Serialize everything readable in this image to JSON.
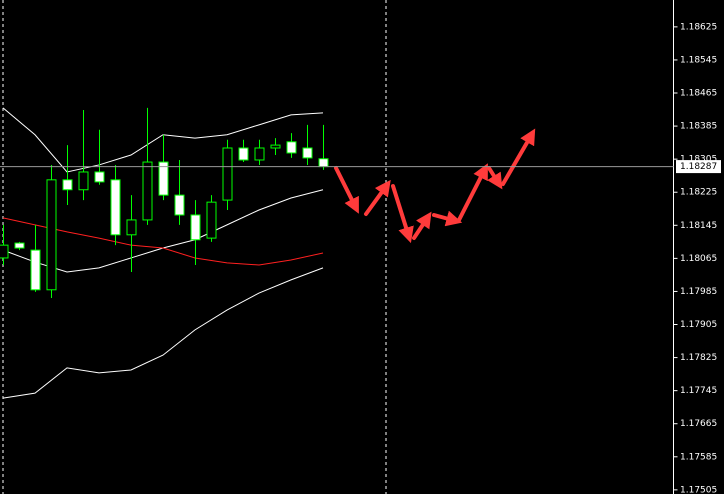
{
  "chart_data": {
    "type": "candlestick",
    "categories": [
      null,
      null,
      null,
      null,
      null,
      null,
      null,
      null,
      null,
      null,
      null,
      null,
      null,
      null,
      null,
      null,
      null,
      null,
      null,
      null,
      null
    ],
    "open": [
      1.18066,
      1.18102,
      1.18085,
      1.17989,
      1.18255,
      1.18231,
      1.18274,
      1.18255,
      1.18122,
      1.18158,
      1.18298,
      1.18218,
      1.1817,
      1.18114,
      1.18206,
      1.18332,
      1.18303,
      1.18332,
      1.18347,
      1.18332,
      1.18306
    ],
    "high": [
      1.18146,
      1.18105,
      1.18146,
      1.18291,
      1.18339,
      1.18424,
      1.18376,
      1.18291,
      1.18218,
      1.18429,
      1.18364,
      1.18303,
      1.18206,
      1.18218,
      1.18352,
      1.18352,
      1.18352,
      1.18356,
      1.18368,
      1.18388,
      1.18388
    ],
    "low": [
      1.18049,
      1.18085,
      1.17984,
      1.17969,
      1.18194,
      1.18206,
      1.18243,
      1.18097,
      1.18032,
      1.18146,
      1.18206,
      1.18146,
      1.18049,
      1.18105,
      1.18182,
      1.18298,
      1.18291,
      1.18315,
      1.18308,
      1.18291,
      1.18279
    ],
    "close": [
      1.18097,
      1.1809,
      1.17989,
      1.18255,
      1.18231,
      1.18274,
      1.1825,
      1.18122,
      1.18158,
      1.18298,
      1.18218,
      1.1817,
      1.1811,
      1.18201,
      1.18332,
      1.18303,
      1.18332,
      1.18339,
      1.1832,
      1.18308,
      1.18287
    ],
    "up_color": "#000000",
    "down_color": "#ffffff",
    "wick_color": "#00ff00",
    "lines": [
      {
        "color": "#ffffff",
        "x": [
          0,
          2,
          4,
          6,
          8,
          10,
          12,
          14,
          16,
          18,
          20
        ],
        "values": [
          1.18429,
          1.18364,
          1.18274,
          1.18291,
          1.18315,
          1.18364,
          1.18356,
          1.18364,
          1.18388,
          1.18412,
          1.18417
        ]
      },
      {
        "color": "#ffffff",
        "x": [
          0,
          2,
          4,
          6,
          8,
          10,
          12,
          14,
          16,
          18,
          20
        ],
        "values": [
          1.18085,
          1.18056,
          1.18032,
          1.18042,
          1.18066,
          1.1809,
          1.1811,
          1.18146,
          1.18182,
          1.18211,
          1.18231
        ]
      },
      {
        "color": "#ffffff",
        "x": [
          0,
          2,
          4,
          6,
          8,
          10,
          12,
          14,
          16,
          18,
          20
        ],
        "values": [
          1.17727,
          1.17739,
          1.178,
          1.17788,
          1.17795,
          1.17831,
          1.17892,
          1.1794,
          1.17981,
          1.18013,
          1.18042
        ]
      },
      {
        "color": "#ff2020",
        "x": [
          0,
          2,
          4,
          6,
          8,
          10,
          12,
          14,
          16,
          18,
          20
        ],
        "values": [
          1.18163,
          1.18146,
          1.18129,
          1.18114,
          1.18097,
          1.1809,
          1.18066,
          1.18054,
          1.18049,
          1.18061,
          1.18078
        ]
      }
    ],
    "current_price": 1.18287,
    "ylim": [
      1.17495,
      1.1869
    ],
    "yticks": [
      1.18625,
      1.18545,
      1.18465,
      1.18385,
      1.18305,
      1.18225,
      1.18145,
      1.18065,
      1.17985,
      1.17905,
      1.17825,
      1.17745,
      1.17665,
      1.17585,
      1.17505
    ]
  }
}
